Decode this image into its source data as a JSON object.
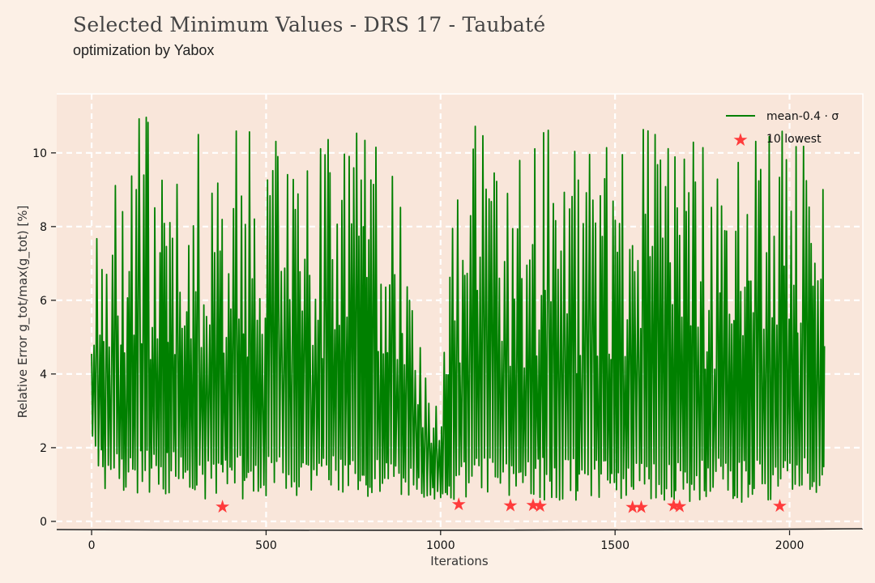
{
  "title": "Selected Minimum Values - DRS 17 - Taubaté",
  "subtitle": "optimization by Yabox",
  "chart_data": {
    "type": "line",
    "xlabel": "Iterations",
    "ylabel": "Relative Error g_tot/max(g_tot) [%]",
    "xlim": [
      -100,
      2210
    ],
    "ylim": [
      -0.2,
      11.6
    ],
    "xticks": [
      0,
      500,
      1000,
      1500,
      2000
    ],
    "yticks": [
      0,
      2,
      4,
      6,
      8,
      10
    ],
    "grid": true,
    "legend_position": "top-right",
    "series": [
      {
        "name": "mean-0.4 · σ",
        "color": "#008000",
        "x_range": [
          0,
          2100
        ],
        "envelope": {
          "x": [
            0,
            20,
            100,
            200,
            300,
            400,
            500,
            600,
            700,
            800,
            900,
            950,
            1000,
            1050,
            1100,
            1200,
            1300,
            1400,
            1500,
            1600,
            1700,
            1800,
            1900,
            2000,
            2100
          ],
          "lower": [
            1.5,
            0.9,
            0.8,
            0.7,
            0.6,
            0.6,
            0.6,
            0.6,
            0.6,
            0.6,
            0.6,
            0.6,
            0.6,
            0.55,
            0.55,
            0.55,
            0.55,
            0.55,
            0.5,
            0.5,
            0.5,
            0.5,
            0.5,
            0.5,
            0.55
          ],
          "upper": [
            10.2,
            10.5,
            10.8,
            11.2,
            10.9,
            10.7,
            10.6,
            10.5,
            11.1,
            10.4,
            9.5,
            4.5,
            3.2,
            10.3,
            10.8,
            10.5,
            10.9,
            10.2,
            10.8,
            10.9,
            10.6,
            10.9,
            10.5,
            10.7,
            10.6
          ]
        }
      }
    ],
    "markers": {
      "name": "10 lowest",
      "color": "#ff3b3b",
      "points": [
        {
          "x": 375,
          "y": 0.42
        },
        {
          "x": 1052,
          "y": 0.48
        },
        {
          "x": 1200,
          "y": 0.45
        },
        {
          "x": 1265,
          "y": 0.46
        },
        {
          "x": 1285,
          "y": 0.44
        },
        {
          "x": 1550,
          "y": 0.4
        },
        {
          "x": 1575,
          "y": 0.4
        },
        {
          "x": 1668,
          "y": 0.45
        },
        {
          "x": 1685,
          "y": 0.43
        },
        {
          "x": 1972,
          "y": 0.44
        }
      ]
    },
    "colors": {
      "plot_background": "#f9e6da",
      "page_background": "#fcf0e6",
      "grid": "#ffffff"
    }
  }
}
